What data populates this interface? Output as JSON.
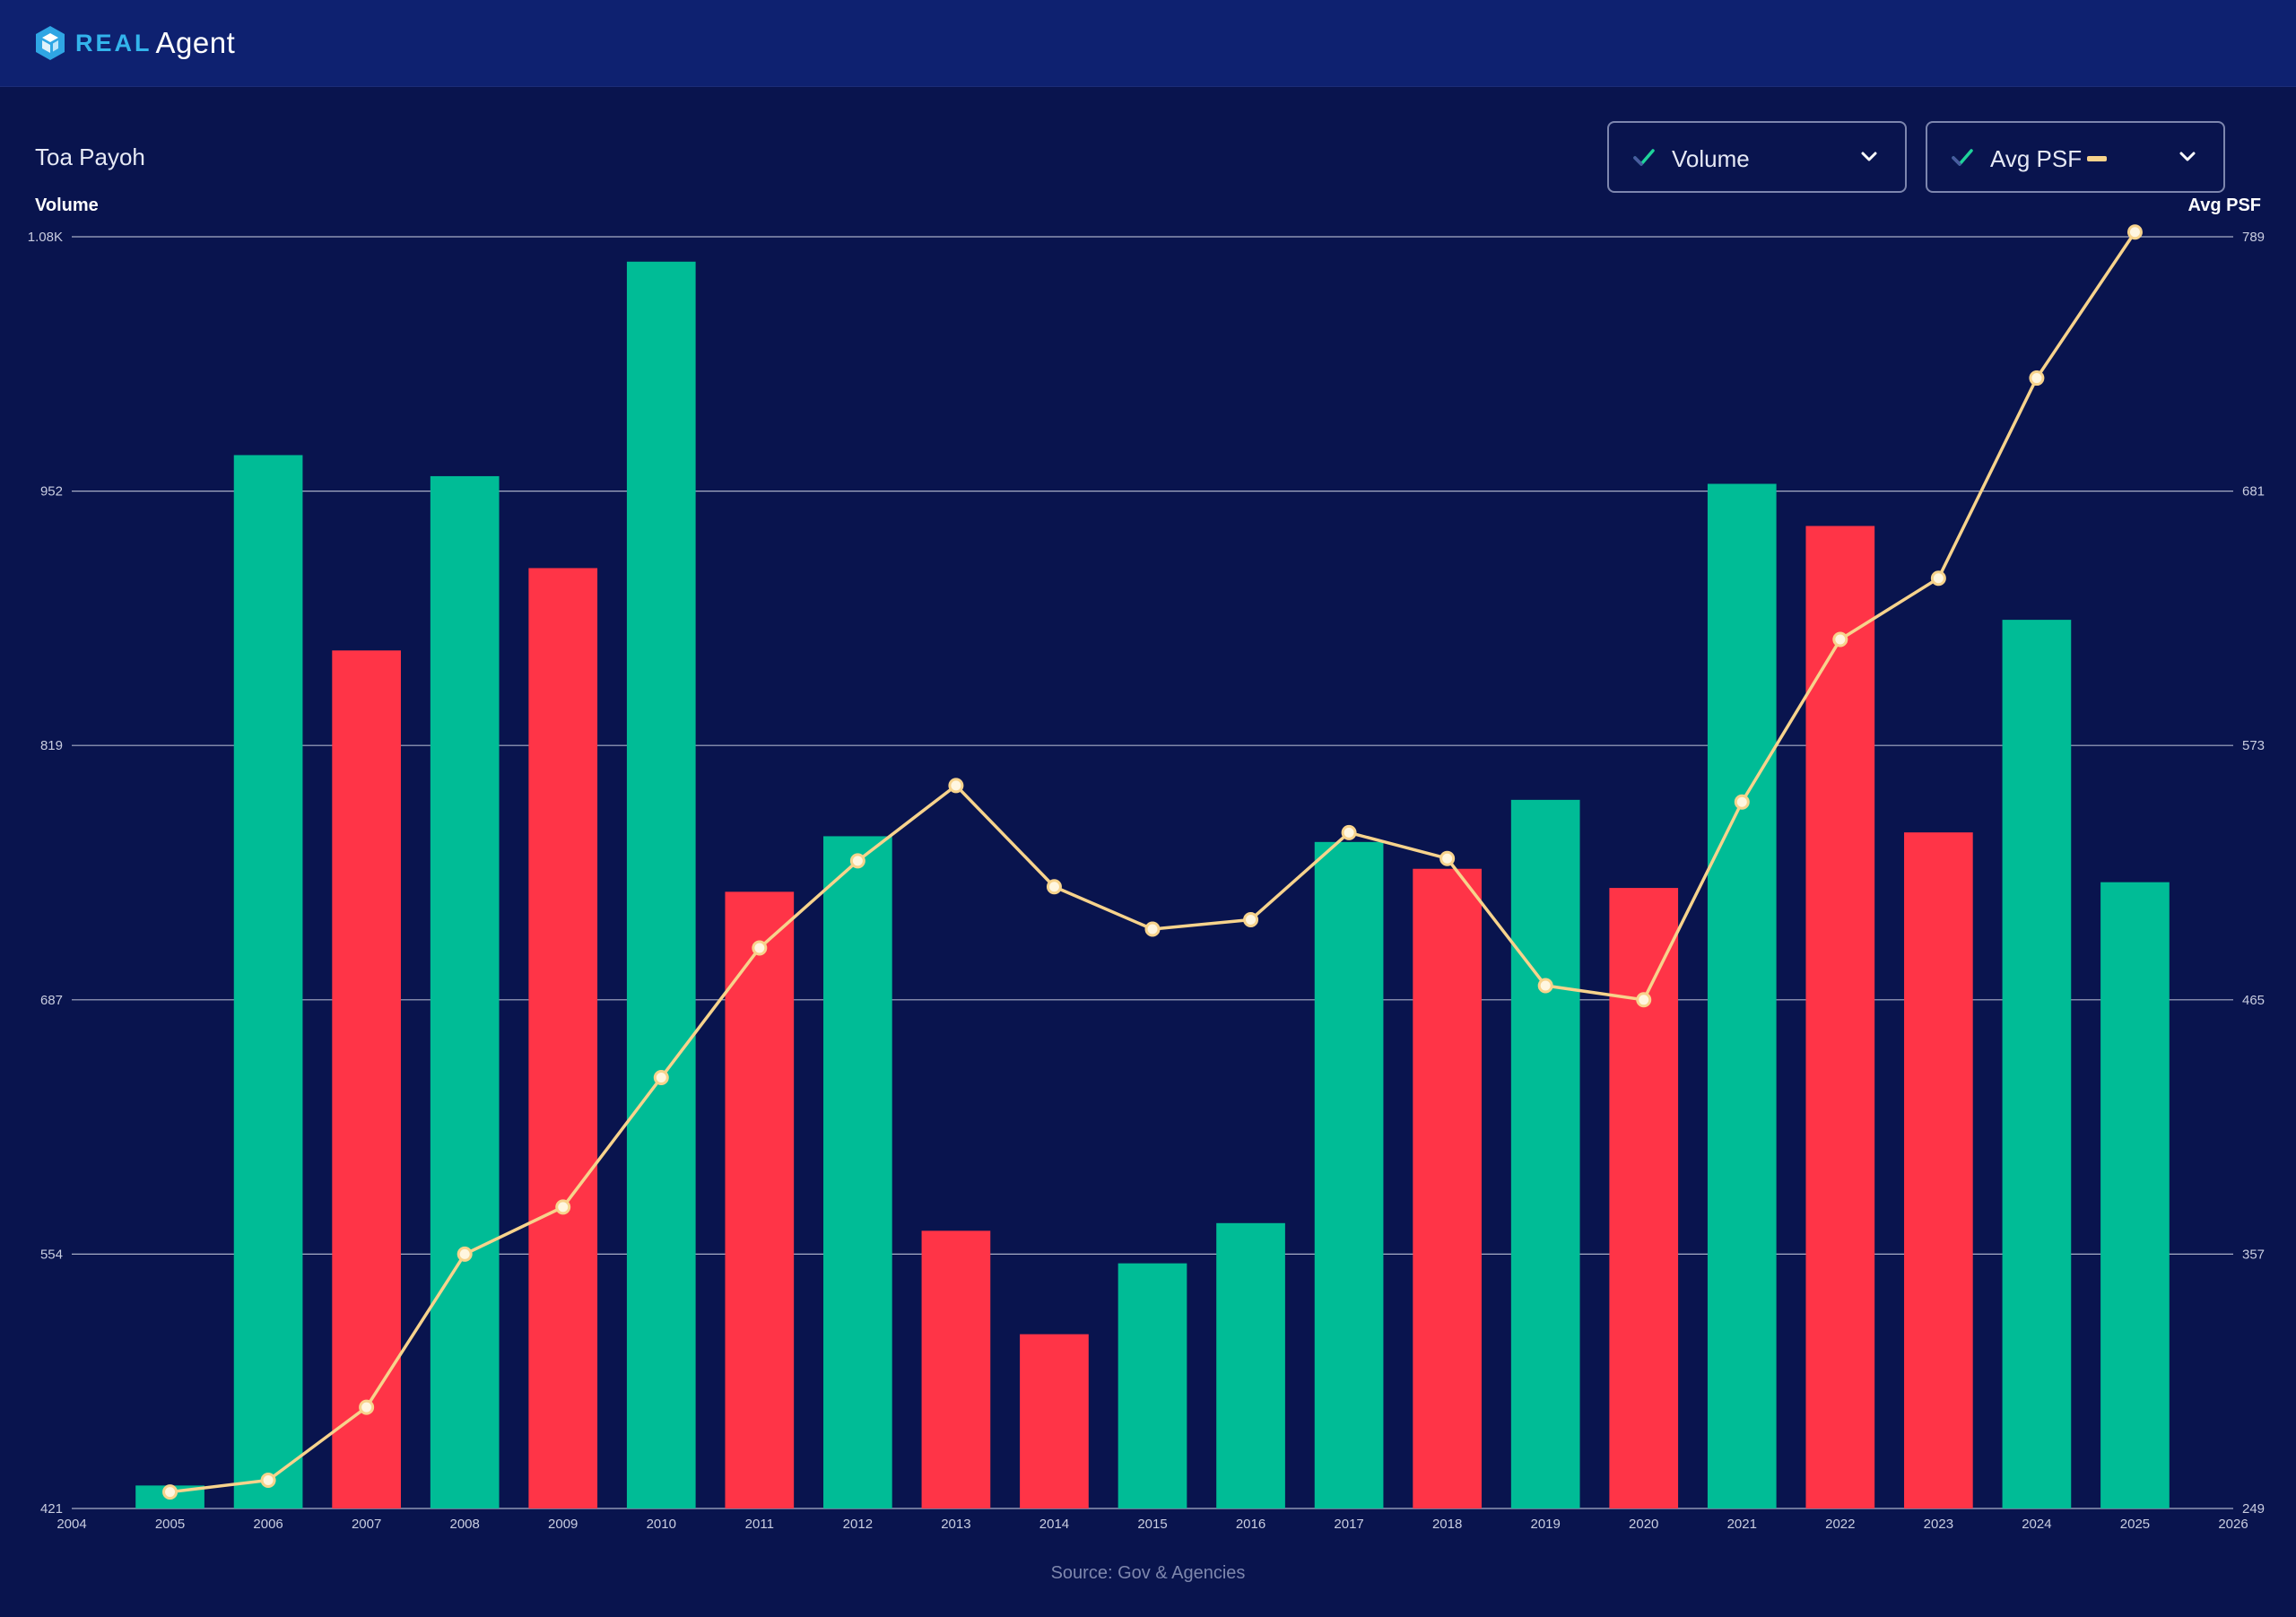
{
  "header": {
    "logo_real": "REAL",
    "logo_agent": "Agent"
  },
  "page": {
    "location": "Toa Payoh",
    "source": "Source: Gov & Agencies"
  },
  "controls": {
    "volume_label": "Volume",
    "avg_psf_label": "Avg PSF"
  },
  "colors": {
    "up_bar": "#00bc96",
    "down_bar": "#ff3447",
    "line": "#f7d38c",
    "background": "#09144e",
    "header": "#0e2170"
  },
  "chart_data": {
    "type": "bar",
    "title": "Toa Payoh",
    "x": [
      2005,
      2006,
      2007,
      2008,
      2009,
      2010,
      2011,
      2012,
      2013,
      2014,
      2015,
      2016,
      2017,
      2018,
      2019,
      2020,
      2021,
      2022,
      2023,
      2024,
      2025
    ],
    "x_ticks": [
      "2004",
      "2005",
      "2006",
      "2007",
      "2008",
      "2009",
      "2010",
      "2011",
      "2012",
      "2013",
      "2014",
      "2015",
      "2016",
      "2017",
      "2018",
      "2019",
      "2020",
      "2021",
      "2022",
      "2023",
      "2024",
      "2025",
      "2026"
    ],
    "xlim": [
      2004,
      2026
    ],
    "series": [
      {
        "name": "Volume",
        "type": "bar",
        "axis": "left",
        "values": [
          433,
          971,
          869,
          960,
          912,
          1072,
          743,
          772,
          566,
          512,
          549,
          570,
          769,
          755,
          791,
          745,
          956,
          934,
          774,
          885,
          748
        ],
        "colors": [
          "up",
          "up",
          "down",
          "up",
          "down",
          "up",
          "down",
          "up",
          "down",
          "down",
          "up",
          "up",
          "up",
          "down",
          "up",
          "down",
          "up",
          "down",
          "down",
          "up",
          "up"
        ]
      },
      {
        "name": "Avg PSF",
        "type": "line",
        "axis": "right",
        "values": [
          256,
          261,
          292,
          357,
          377,
          432,
          487,
          524,
          556,
          513,
          495,
          499,
          536,
          525,
          471,
          465,
          549,
          618,
          644,
          729,
          791
        ]
      }
    ],
    "ylabel_left": "Volume",
    "ylabel_right": "Avg PSF",
    "y_left_ticks": [
      "421",
      "554",
      "687",
      "819",
      "952",
      "1.08K"
    ],
    "y_right_ticks": [
      "249",
      "357",
      "465",
      "573",
      "681",
      "789"
    ],
    "ylim_left": [
      421,
      1085
    ],
    "ylim_right": [
      249,
      789
    ],
    "grid": true,
    "legend": "top-right"
  }
}
